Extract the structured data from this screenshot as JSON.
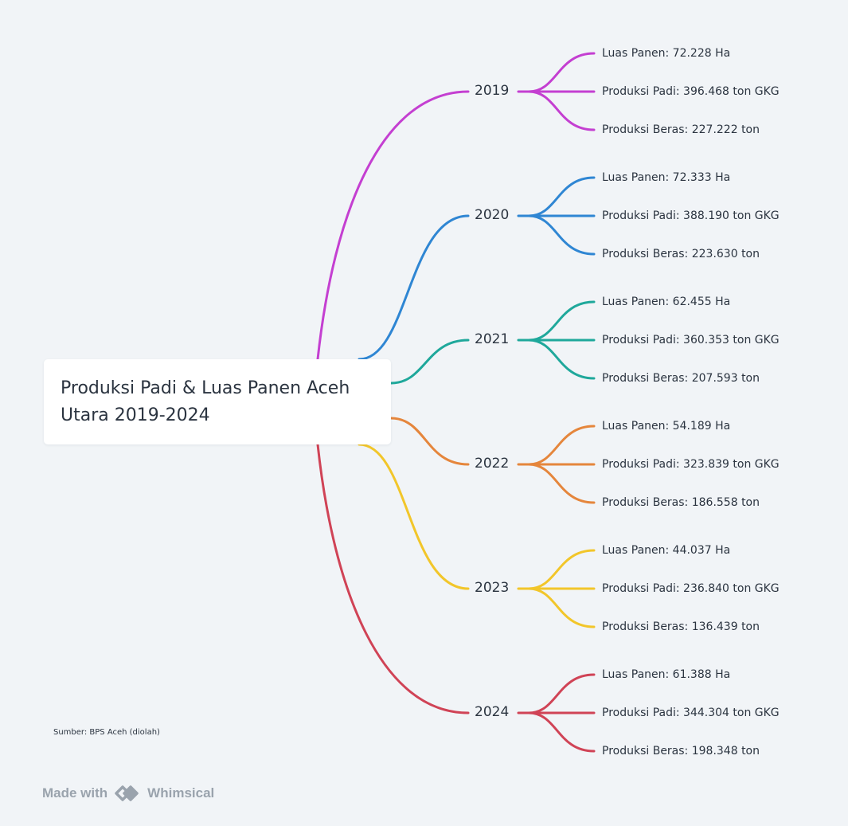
{
  "root": {
    "title_line1": "Produksi Padi & Luas Panen Aceh",
    "title_line2": "Utara 2019-2024"
  },
  "years": [
    {
      "label": "2019",
      "color": "#c43fd1",
      "items": [
        "Luas Panen: 72.228 Ha",
        "Produksi Padi: 396.468 ton GKG",
        "Produksi Beras: 227.222 ton"
      ]
    },
    {
      "label": "2020",
      "color": "#2f86d3",
      "items": [
        "Luas Panen: 72.333 Ha",
        "Produksi Padi: 388.190 ton GKG",
        "Produksi Beras: 223.630 ton"
      ]
    },
    {
      "label": "2021",
      "color": "#1fa89b",
      "items": [
        "Luas Panen: 62.455 Ha",
        "Produksi Padi: 360.353 ton GKG",
        "Produksi Beras: 207.593 ton"
      ]
    },
    {
      "label": "2022",
      "color": "#e5863c",
      "items": [
        "Luas Panen: 54.189 Ha",
        "Produksi Padi: 323.839 ton GKG",
        "Produksi Beras: 186.558 ton"
      ]
    },
    {
      "label": "2023",
      "color": "#f2c62a",
      "items": [
        "Luas Panen: 44.037 Ha",
        "Produksi Padi: 236.840 ton GKG",
        "Produksi Beras: 136.439 ton"
      ]
    },
    {
      "label": "2024",
      "color": "#d04356",
      "items": [
        "Luas Panen: 61.388 Ha",
        "Produksi Padi: 344.304 ton GKG",
        "Produksi Beras: 198.348 ton"
      ]
    }
  ],
  "source_note": "Sumber: BPS Aceh (diolah)",
  "footer": {
    "made_with": "Made with",
    "brand": "Whimsical",
    "logo_icon": "whimsical-logo-icon",
    "brand_color": "#9aa3ad"
  }
}
